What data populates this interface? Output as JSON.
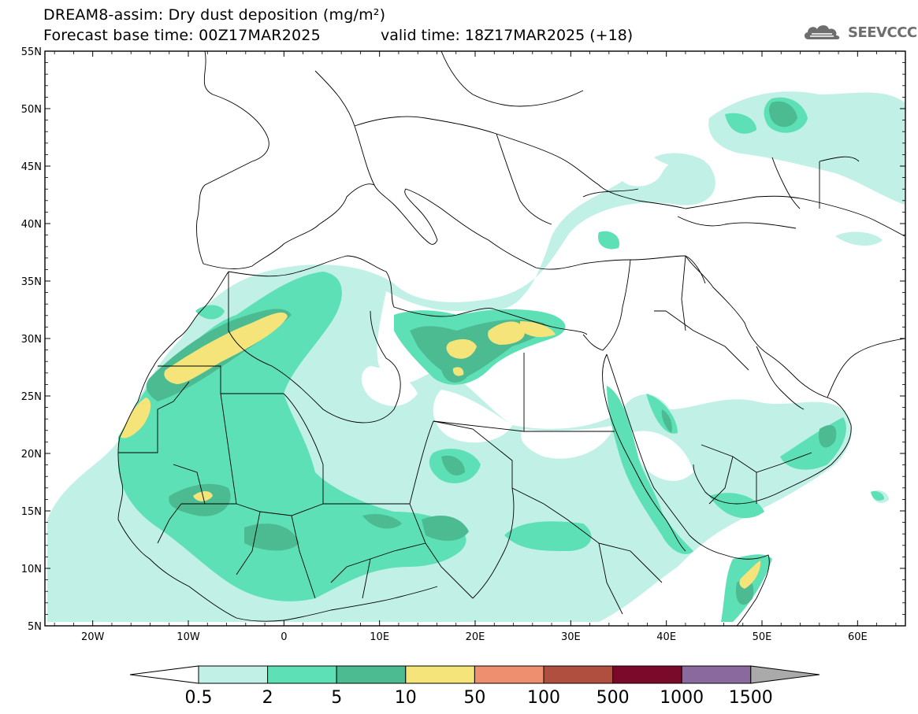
{
  "header": {
    "title_line1": "DREAM8-assim: Dry dust deposition (mg/m²)",
    "title_line2": "Forecast base time: 00Z17MAR2025",
    "valid_time": "valid time: 18Z17MAR2025 (+18)",
    "logo_text": "SEEVCCC"
  },
  "map": {
    "lon_labels": [
      "20W",
      "10W",
      "0",
      "10E",
      "20E",
      "30E",
      "40E",
      "50E",
      "60E"
    ],
    "lat_labels": [
      "55N",
      "50N",
      "45N",
      "40N",
      "35N",
      "30N",
      "25N",
      "20N",
      "15N",
      "10N",
      "5N"
    ]
  },
  "colorbar": {
    "labels": [
      "0.5",
      "2",
      "5",
      "10",
      "50",
      "100",
      "500",
      "1000",
      "1500"
    ],
    "colors": [
      "#c0f0e6",
      "#5ee0b6",
      "#4dbb92",
      "#f5e47a",
      "#ee9070",
      "#b04e40",
      "#7b0a2a",
      "#8a6a9e"
    ],
    "under_color": "#ffffff",
    "over_color": "#aaaaaa"
  }
}
